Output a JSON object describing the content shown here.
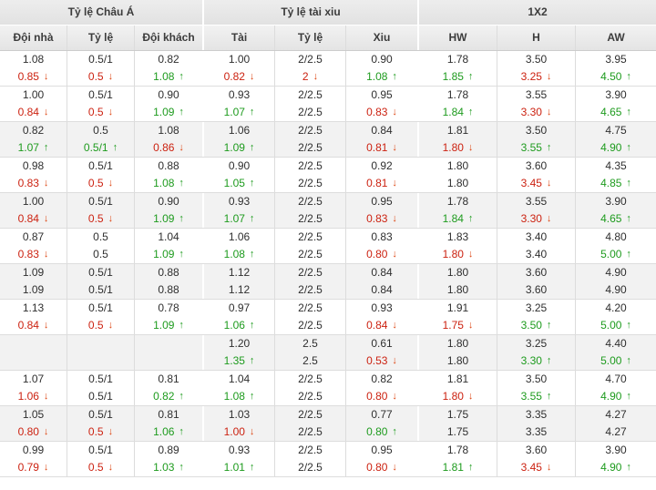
{
  "colors": {
    "red": "#cc2211",
    "green": "#1e9b1e",
    "black": "#2f2f2f",
    "shaded_row": "#f2f2f2",
    "header_bg": "#e6e6e6",
    "row_border": "#dddddd"
  },
  "table": {
    "groups": [
      {
        "title": "Tỷ lệ Châu Á",
        "columns": [
          "Đội nhà",
          "Tỷ lệ",
          "Đội khách"
        ]
      },
      {
        "title": "Tỷ lệ tài xiu",
        "columns": [
          "Tài",
          "Tỷ lệ",
          "Xiu"
        ]
      },
      {
        "title": "1X2",
        "columns": [
          "HW",
          "H",
          "AW"
        ]
      }
    ],
    "cell_format": "value|color(r=red,g=green,empty=black)|arrow(u=up,d=down)",
    "matches": [
      {
        "shaded": false,
        "rows": [
          [
            "1.08",
            "0.5/1",
            "0.82",
            "1.00",
            "2/2.5",
            "0.90",
            "1.78",
            "3.50",
            "3.95"
          ],
          [
            "0.85|r|d",
            "0.5|r|d",
            "1.08|g|u",
            "0.82|r|d",
            "2|r|d",
            "1.08|g|u",
            "1.85|g|u",
            "3.25|r|d",
            "4.50|g|u"
          ]
        ]
      },
      {
        "shaded": false,
        "rows": [
          [
            "1.00",
            "0.5/1",
            "0.90",
            "0.93",
            "2/2.5",
            "0.95",
            "1.78",
            "3.55",
            "3.90"
          ],
          [
            "0.84|r|d",
            "0.5|r|d",
            "1.09|g|u",
            "1.07|g|u",
            "2/2.5",
            "0.83|r|d",
            "1.84|g|u",
            "3.30|r|d",
            "4.65|g|u"
          ]
        ]
      },
      {
        "shaded": true,
        "rows": [
          [
            "0.82",
            "0.5",
            "1.08",
            "1.06",
            "2/2.5",
            "0.84",
            "1.81",
            "3.50",
            "4.75"
          ],
          [
            "1.07|g|u",
            "0.5/1|g|u",
            "0.86|r|d",
            "1.09|g|u",
            "2/2.5",
            "0.81|r|d",
            "1.80|r|d",
            "3.55|g|u",
            "4.90|g|u"
          ]
        ]
      },
      {
        "shaded": false,
        "rows": [
          [
            "0.98",
            "0.5/1",
            "0.88",
            "0.90",
            "2/2.5",
            "0.92",
            "1.80",
            "3.60",
            "4.35"
          ],
          [
            "0.83|r|d",
            "0.5|r|d",
            "1.08|g|u",
            "1.05|g|u",
            "2/2.5",
            "0.81|r|d",
            "1.80",
            "3.45|r|d",
            "4.85|g|u"
          ]
        ]
      },
      {
        "shaded": true,
        "rows": [
          [
            "1.00",
            "0.5/1",
            "0.90",
            "0.93",
            "2/2.5",
            "0.95",
            "1.78",
            "3.55",
            "3.90"
          ],
          [
            "0.84|r|d",
            "0.5|r|d",
            "1.09|g|u",
            "1.07|g|u",
            "2/2.5",
            "0.83|r|d",
            "1.84|g|u",
            "3.30|r|d",
            "4.65|g|u"
          ]
        ]
      },
      {
        "shaded": false,
        "rows": [
          [
            "0.87",
            "0.5",
            "1.04",
            "1.06",
            "2/2.5",
            "0.83",
            "1.83",
            "3.40",
            "4.80"
          ],
          [
            "0.83|r|d",
            "0.5",
            "1.09|g|u",
            "1.08|g|u",
            "2/2.5",
            "0.80|r|d",
            "1.80|r|d",
            "3.40",
            "5.00|g|u"
          ]
        ]
      },
      {
        "shaded": true,
        "rows": [
          [
            "1.09",
            "0.5/1",
            "0.88",
            "1.12",
            "2/2.5",
            "0.84",
            "1.80",
            "3.60",
            "4.90"
          ],
          [
            "1.09",
            "0.5/1",
            "0.88",
            "1.12",
            "2/2.5",
            "0.84",
            "1.80",
            "3.60",
            "4.90"
          ]
        ]
      },
      {
        "shaded": false,
        "rows": [
          [
            "1.13",
            "0.5/1",
            "0.78",
            "0.97",
            "2/2.5",
            "0.93",
            "1.91",
            "3.25",
            "4.20"
          ],
          [
            "0.84|r|d",
            "0.5|r|d",
            "1.09|g|u",
            "1.06|g|u",
            "2/2.5",
            "0.84|r|d",
            "1.75|r|d",
            "3.50|g|u",
            "5.00|g|u"
          ]
        ]
      },
      {
        "shaded": true,
        "rows": [
          [
            "",
            "",
            "",
            "1.20",
            "2.5",
            "0.61",
            "1.80",
            "3.25",
            "4.40"
          ],
          [
            "",
            "",
            "",
            "1.35|g|u",
            "2.5",
            "0.53|r|d",
            "1.80",
            "3.30|g|u",
            "5.00|g|u"
          ]
        ]
      },
      {
        "shaded": false,
        "rows": [
          [
            "1.07",
            "0.5/1",
            "0.81",
            "1.04",
            "2/2.5",
            "0.82",
            "1.81",
            "3.50",
            "4.70"
          ],
          [
            "1.06|r|d",
            "0.5/1",
            "0.82|g|u",
            "1.08|g|u",
            "2/2.5",
            "0.80|r|d",
            "1.80|r|d",
            "3.55|g|u",
            "4.90|g|u"
          ]
        ]
      },
      {
        "shaded": true,
        "rows": [
          [
            "1.05",
            "0.5/1",
            "0.81",
            "1.03",
            "2/2.5",
            "0.77",
            "1.75",
            "3.35",
            "4.27"
          ],
          [
            "0.80|r|d",
            "0.5|r|d",
            "1.06|g|u",
            "1.00|r|d",
            "2/2.5",
            "0.80|g|u",
            "1.75",
            "3.35",
            "4.27"
          ]
        ]
      },
      {
        "shaded": false,
        "rows": [
          [
            "0.99",
            "0.5/1",
            "0.89",
            "0.93",
            "2/2.5",
            "0.95",
            "1.78",
            "3.60",
            "3.90"
          ],
          [
            "0.79|r|d",
            "0.5|r|d",
            "1.03|g|u",
            "1.01|g|u",
            "2/2.5",
            "0.80|r|d",
            "1.81|g|u",
            "3.45|r|d",
            "4.90|g|u"
          ]
        ]
      }
    ]
  }
}
